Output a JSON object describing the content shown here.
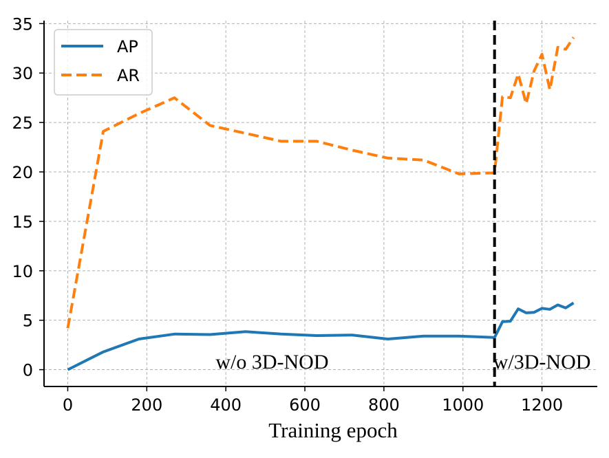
{
  "chart_data": {
    "type": "line",
    "title": "",
    "xlabel": "Training epoch",
    "ylabel": "",
    "xlim": [
      -60,
      1340
    ],
    "ylim": [
      -1.7,
      35.3
    ],
    "xticks": [
      0,
      200,
      400,
      600,
      800,
      1000,
      1200
    ],
    "yticks": [
      0,
      5,
      10,
      15,
      20,
      25,
      30,
      35
    ],
    "grid": true,
    "legend_location": "top-left",
    "series": [
      {
        "name": "AP",
        "color": "#1f77b4",
        "style": "solid",
        "x": [
          0,
          90,
          180,
          270,
          360,
          450,
          540,
          630,
          720,
          810,
          900,
          990,
          1080,
          1100,
          1120,
          1140,
          1160,
          1180,
          1200,
          1220,
          1240,
          1260,
          1280
        ],
        "y": [
          0.0,
          1.8,
          3.1,
          3.6,
          3.55,
          3.85,
          3.6,
          3.45,
          3.5,
          3.1,
          3.4,
          3.4,
          3.25,
          4.85,
          4.9,
          6.15,
          5.75,
          5.8,
          6.2,
          6.1,
          6.55,
          6.25,
          6.75
        ]
      },
      {
        "name": "AR",
        "color": "#ff7f0e",
        "style": "dashed",
        "x": [
          0,
          90,
          180,
          270,
          360,
          450,
          540,
          630,
          720,
          810,
          900,
          990,
          1080,
          1100,
          1120,
          1140,
          1160,
          1180,
          1200,
          1220,
          1240,
          1260,
          1280
        ],
        "y": [
          4.2,
          24.1,
          25.9,
          27.5,
          24.7,
          23.9,
          23.1,
          23.1,
          22.2,
          21.4,
          21.2,
          19.8,
          19.9,
          27.6,
          27.5,
          29.9,
          26.9,
          30.2,
          31.9,
          28.3,
          32.6,
          32.4,
          33.6
        ]
      }
    ],
    "divider": {
      "x": 1080,
      "style": "dashed",
      "color": "#000000"
    },
    "annotations": [
      {
        "text": "w/o 3D-NOD",
        "x": 660,
        "y": 0.4
      },
      {
        "text": "w/3D-NOD",
        "x": 1200,
        "y": 0.4
      }
    ]
  }
}
